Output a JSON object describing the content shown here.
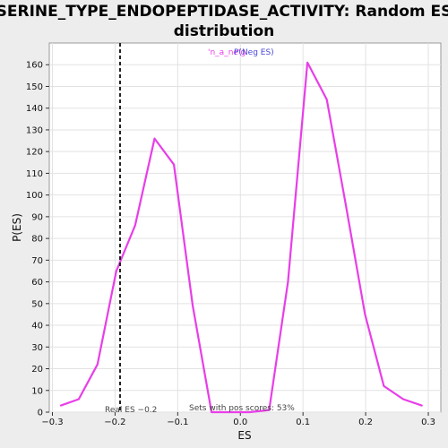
{
  "chart_data": {
    "type": "line",
    "title_line1": "SERINE_TYPE_ENDOPEPTIDASE_ACTIVITY: Random ES",
    "title_line2": "distribution",
    "xlabel": "ES",
    "ylabel": "P(ES)",
    "xlim": [
      -0.305,
      0.32
    ],
    "ylim": [
      0,
      170
    ],
    "xticks": [
      -0.3,
      -0.2,
      -0.1,
      0,
      0.1,
      0.2,
      0.3
    ],
    "xtick_labels": [
      "−0.3",
      "−0.2",
      "−0.1",
      "0.0",
      "0.1",
      "0.2",
      "0.3"
    ],
    "yticks": [
      0,
      10,
      20,
      30,
      40,
      50,
      60,
      70,
      80,
      90,
      100,
      110,
      120,
      130,
      140,
      150,
      160
    ],
    "grid": true,
    "series": [
      {
        "color": "#e83ee8",
        "x": [
          -0.287,
          -0.258,
          -0.228,
          -0.198,
          -0.168,
          -0.137,
          -0.106,
          -0.076,
          -0.046,
          -0.015,
          0.015,
          0.046,
          0.076,
          0.107,
          0.138,
          0.168,
          0.199,
          0.229,
          0.26,
          0.29
        ],
        "y": [
          3,
          6,
          22,
          65,
          86,
          126,
          114,
          49,
          0,
          0,
          0,
          1,
          60,
          161,
          144,
          96,
          45,
          12,
          6,
          3
        ]
      }
    ],
    "real_es": -0.192,
    "legend_text_a": "'n_a_ne'g'",
    "legend_text_b": "P(Neg ES)",
    "legend_color_a": "#e83ee8",
    "legend_color_b": "#4a46d6",
    "annotation_real_es": "Real ES −0.2",
    "annotation_pos_scores": "Sets with pos scores: 53%"
  }
}
